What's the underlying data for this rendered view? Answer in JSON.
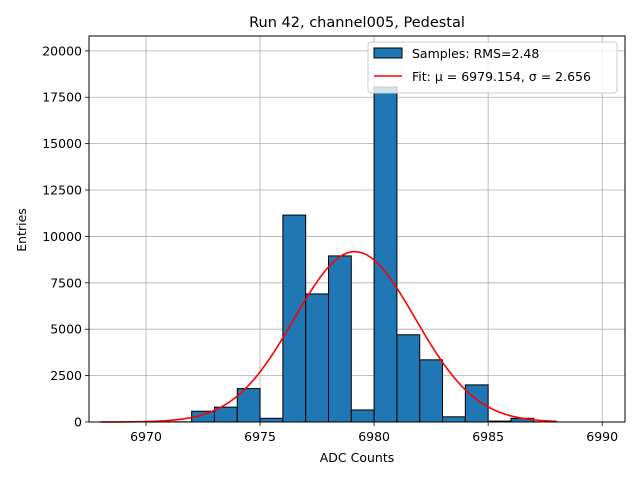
{
  "chart_data": {
    "type": "bar",
    "title": "Run 42, channel005, Pedestal",
    "xlabel": "ADC Counts",
    "ylabel": "Entries",
    "xlim": [
      6967.5,
      6991.0
    ],
    "ylim": [
      0,
      20800
    ],
    "grid": true,
    "legend_position": "top-right",
    "x_ticks": [
      6970,
      6975,
      6980,
      6985,
      6990
    ],
    "y_ticks": [
      0,
      2500,
      5000,
      7500,
      10000,
      12500,
      15000,
      17500,
      20000
    ],
    "histogram": {
      "name": "Samples: RMS=2.48",
      "color": "#1f77b4",
      "edge_color": "#000000",
      "bin_width": 1,
      "bins": [
        {
          "left": 6968,
          "value": 0
        },
        {
          "left": 6969,
          "value": 0
        },
        {
          "left": 6970,
          "value": 30
        },
        {
          "left": 6971,
          "value": 10
        },
        {
          "left": 6972,
          "value": 580
        },
        {
          "left": 6973,
          "value": 800
        },
        {
          "left": 6974,
          "value": 1800
        },
        {
          "left": 6975,
          "value": 200
        },
        {
          "left": 6976,
          "value": 11150
        },
        {
          "left": 6977,
          "value": 6900
        },
        {
          "left": 6978,
          "value": 8950
        },
        {
          "left": 6979,
          "value": 650
        },
        {
          "left": 6980,
          "value": 18050
        },
        {
          "left": 6981,
          "value": 4700
        },
        {
          "left": 6982,
          "value": 3350
        },
        {
          "left": 6983,
          "value": 280
        },
        {
          "left": 6984,
          "value": 2000
        },
        {
          "left": 6985,
          "value": 50
        },
        {
          "left": 6986,
          "value": 200
        },
        {
          "left": 6987,
          "value": 10
        }
      ]
    },
    "fit": {
      "name": "Fit: μ = 6979.154, σ = 2.656",
      "color": "#ff0000",
      "mu": 6979.154,
      "sigma": 2.656,
      "amplitude": 9180,
      "x_range": [
        6968,
        6988
      ]
    }
  }
}
